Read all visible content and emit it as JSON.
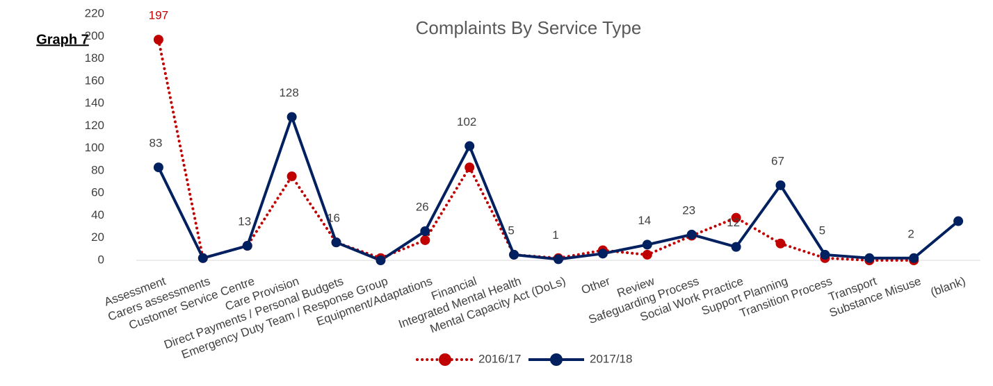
{
  "page_label": "Graph 7",
  "chart_data": {
    "type": "line",
    "title": "Complaints By Service Type",
    "categories": [
      "Assessment",
      "Carers assessments",
      "Customer Service Centre",
      "Care Provision",
      "Direct Payments / Personal Budgets",
      "Emergency Duty Team / Response Group",
      "Equipment/Adaptations",
      "Financial",
      "Integrated Mental Health",
      "Mental Capacity Act (DoLs)",
      "Other",
      "Review",
      "Safeguarding Process",
      "Social Work Practice",
      "Support Planning",
      "Transition Process",
      "Transport",
      "Substance Misuse",
      "(blank)"
    ],
    "series": [
      {
        "name": "2016/17",
        "color": "#c00000",
        "style": "dotted",
        "values": [
          197,
          2,
          13,
          75,
          16,
          2,
          18,
          83,
          5,
          2,
          9,
          5,
          22,
          38,
          15,
          2,
          0,
          0,
          null
        ],
        "value_labels": [
          "197",
          null,
          null,
          null,
          null,
          null,
          null,
          null,
          null,
          null,
          null,
          null,
          null,
          null,
          null,
          null,
          null,
          null,
          null
        ]
      },
      {
        "name": "2017/18",
        "color": "#002060",
        "style": "solid",
        "values": [
          83,
          2,
          13,
          128,
          16,
          0,
          26,
          102,
          5,
          1,
          6,
          14,
          23,
          12,
          67,
          5,
          2,
          2,
          35
        ],
        "value_labels": [
          "83",
          null,
          "13",
          "128",
          "16",
          null,
          "26",
          "102",
          "5",
          "1",
          null,
          "14",
          "23",
          "12",
          "67",
          "5",
          null,
          "2",
          null
        ]
      }
    ],
    "ylim": [
      0,
      220
    ],
    "yticks": [
      0,
      20,
      40,
      60,
      80,
      100,
      120,
      140,
      160,
      180,
      200,
      220
    ],
    "legend": "bottom"
  }
}
